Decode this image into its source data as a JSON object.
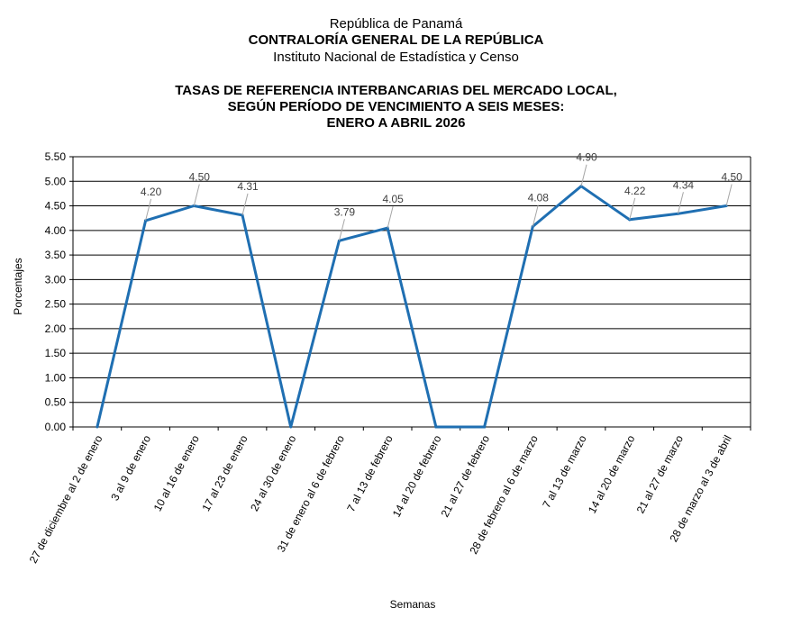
{
  "header": {
    "line1": "República de Panamá",
    "line2": "CONTRALORÍA GENERAL DE LA REPÚBLICA",
    "line3": "Instituto  Nacional de Estadística y Censo"
  },
  "chart_data": {
    "type": "line",
    "title": [
      "TASAS DE REFERENCIA INTERBANCARIAS DEL MERCADO LOCAL,",
      "SEGÚN PERÍODO DE VENCIMIENTO A SEIS MESES:",
      "ENERO A ABRIL 2026"
    ],
    "xlabel": "Semanas",
    "ylabel": "Porcentajes",
    "ylim": [
      0,
      5.5
    ],
    "ytick_step": 0.5,
    "grid": true,
    "line_color": "#1f6fb2",
    "categories": [
      "27 de diciembre al 2 de enero",
      "3 al 9 de enero",
      "10 al 16 de enero",
      "17 al 23 de enero",
      "24 al 30 de enero",
      "31 de enero al 6 de febrero",
      "7 al 13 de febrero",
      "14 al 20 de febrero",
      "21 al 27 de febrero",
      "28 de febrero al 6 de marzo",
      "7 al 13 de marzo",
      "14 al 20 de marzo",
      "21 al 27 de marzo",
      "28 de marzo al 3 de abril"
    ],
    "values": [
      0,
      4.2,
      4.5,
      4.31,
      0,
      3.79,
      4.05,
      0,
      0,
      4.08,
      4.9,
      4.22,
      4.34,
      4.5
    ],
    "data_labels": [
      null,
      "4.20",
      "4.50",
      "4.31",
      null,
      "3.79",
      "4.05",
      null,
      null,
      "4.08",
      "4.90",
      "4.22",
      "4.34",
      "4.50"
    ]
  }
}
